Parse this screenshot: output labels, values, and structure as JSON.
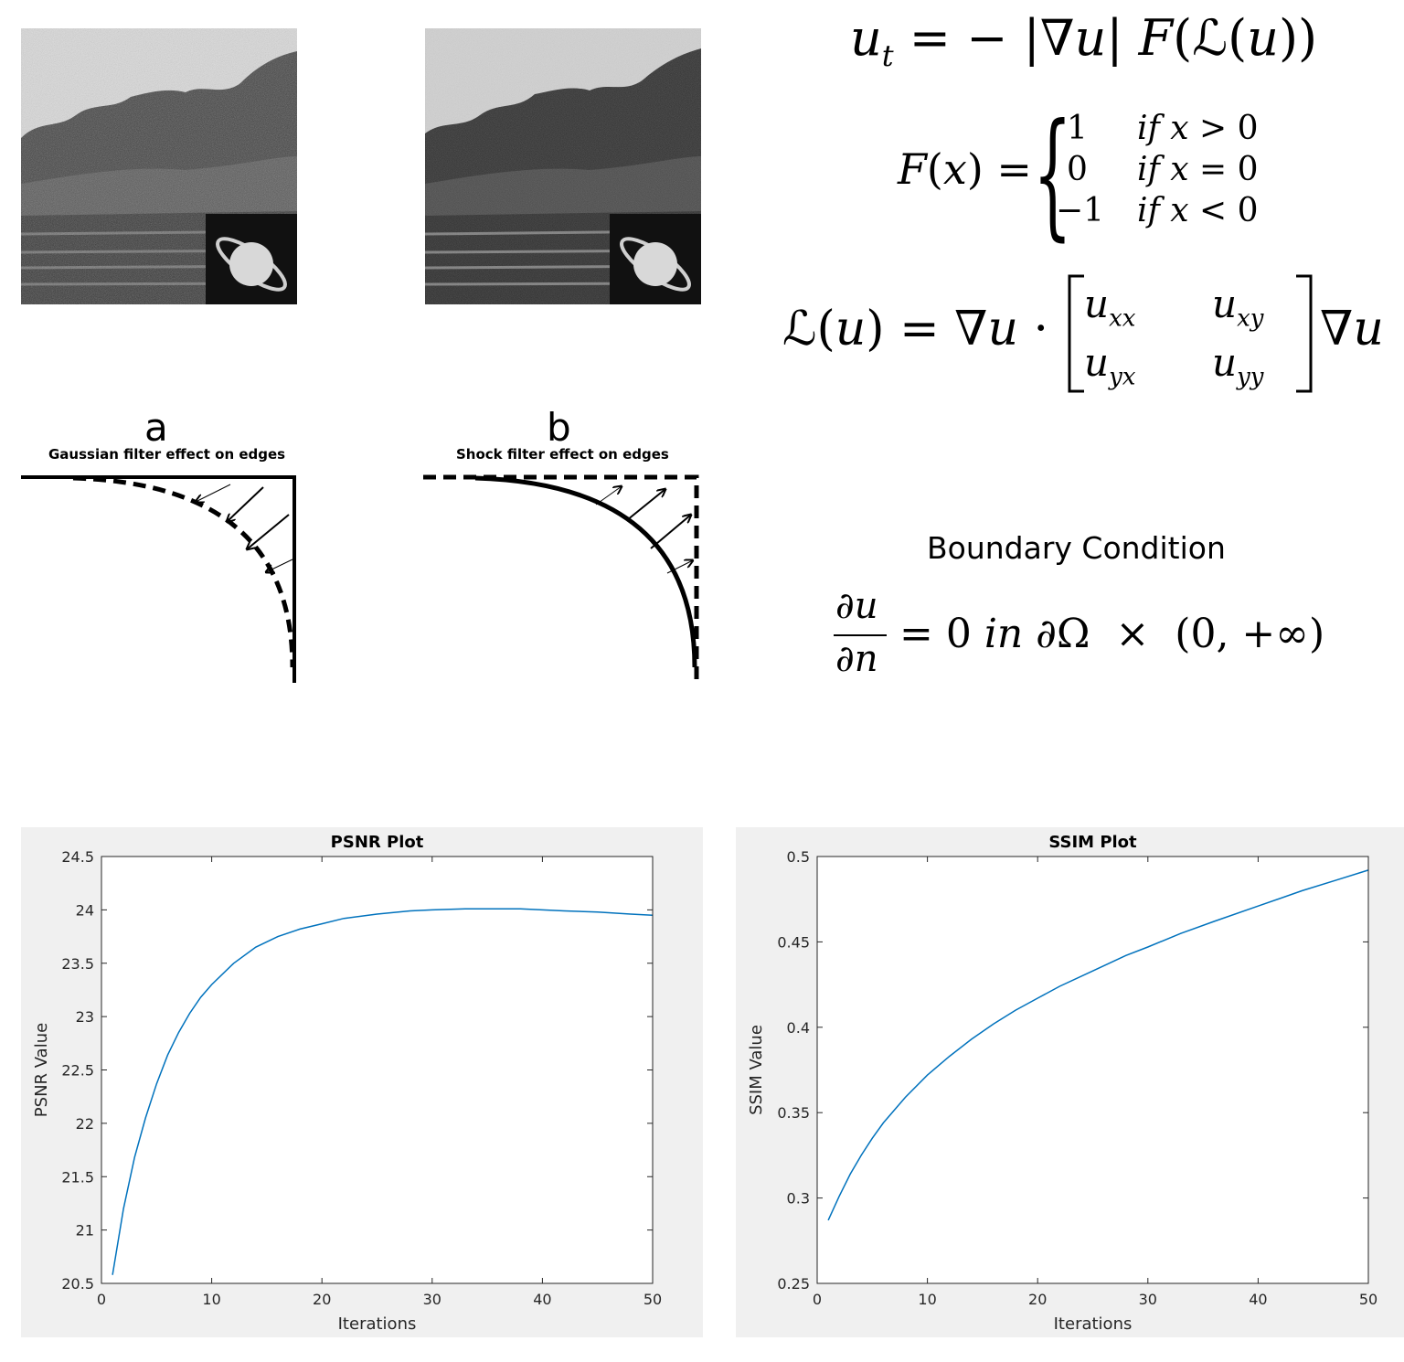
{
  "panels": {
    "a": {
      "letter": "a",
      "caption": "Gaussian filter effect on edges"
    },
    "b": {
      "letter": "b",
      "caption": "Shock filter effect on edges"
    }
  },
  "equations": {
    "boundary_title": "Boundary Condition"
  },
  "chart_data": [
    {
      "type": "line",
      "title": "PSNR Plot",
      "xlabel": "Iterations",
      "ylabel": "PSNR Value",
      "xlim": [
        0,
        50
      ],
      "ylim": [
        20.5,
        24.5
      ],
      "xticks": [
        0,
        10,
        20,
        30,
        40,
        50
      ],
      "yticks": [
        20.5,
        21,
        21.5,
        22,
        22.5,
        23,
        23.5,
        24,
        24.5
      ],
      "color": "#0072bd",
      "grid": false,
      "series": [
        {
          "x": [
            1,
            2,
            3,
            4,
            5,
            6,
            7,
            8,
            9,
            10,
            12,
            14,
            16,
            18,
            20,
            22,
            25,
            28,
            30,
            33,
            36,
            38,
            40,
            42,
            45,
            48,
            50
          ],
          "values": [
            20.58,
            21.2,
            21.68,
            22.05,
            22.37,
            22.64,
            22.85,
            23.03,
            23.18,
            23.3,
            23.5,
            23.65,
            23.75,
            23.82,
            23.87,
            23.92,
            23.96,
            23.99,
            24.0,
            24.01,
            24.01,
            24.01,
            24.0,
            23.99,
            23.98,
            23.96,
            23.95
          ]
        }
      ]
    },
    {
      "type": "line",
      "title": "SSIM Plot",
      "xlabel": "Iterations",
      "ylabel": "SSIM Value",
      "xlim": [
        0,
        50
      ],
      "ylim": [
        0.25,
        0.5
      ],
      "xticks": [
        0,
        10,
        20,
        30,
        40,
        50
      ],
      "yticks": [
        0.25,
        0.3,
        0.35,
        0.4,
        0.45,
        0.5
      ],
      "color": "#0072bd",
      "grid": false,
      "series": [
        {
          "x": [
            1,
            2,
            3,
            4,
            5,
            6,
            8,
            10,
            12,
            14,
            16,
            18,
            20,
            22,
            25,
            28,
            30,
            33,
            36,
            40,
            44,
            47,
            50
          ],
          "values": [
            0.287,
            0.301,
            0.314,
            0.325,
            0.335,
            0.344,
            0.359,
            0.372,
            0.383,
            0.393,
            0.402,
            0.41,
            0.417,
            0.424,
            0.433,
            0.442,
            0.447,
            0.455,
            0.462,
            0.471,
            0.48,
            0.486,
            0.492
          ]
        }
      ]
    }
  ]
}
